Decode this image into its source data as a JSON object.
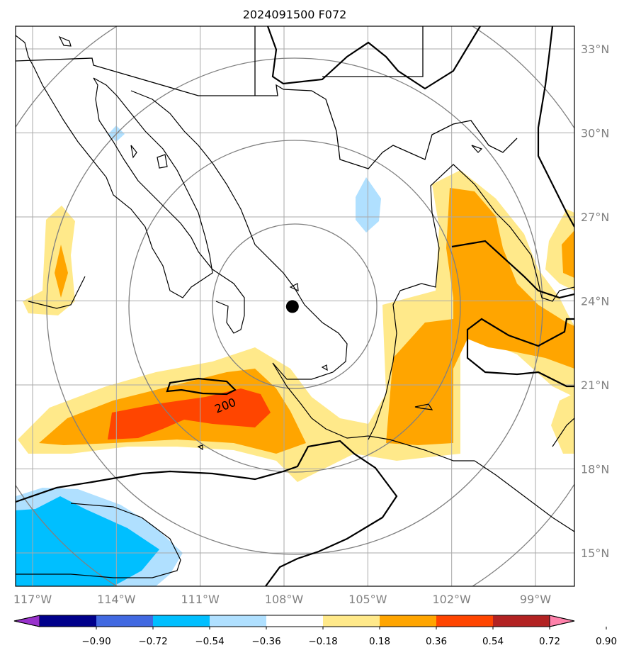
{
  "title": "2024091500 F072",
  "colors": {
    "land_border": "#000000",
    "graticule": "#a9a9a9",
    "range_ring": "#808080",
    "tick_label": "#808080"
  },
  "chart_data": {
    "type": "contourf-map",
    "projection": "lon-lat",
    "lon_range": [
      -118,
      -97.3
    ],
    "lat_range": [
      13.8,
      33.8
    ],
    "lon_ticks": [
      {
        "value": -117,
        "label": "117°W"
      },
      {
        "value": -114,
        "label": "114°W"
      },
      {
        "value": -111,
        "label": "111°W"
      },
      {
        "value": -108,
        "label": "108°W"
      },
      {
        "value": -105,
        "label": "105°W"
      },
      {
        "value": -102,
        "label": "102°W"
      },
      {
        "value": -99,
        "label": "99°W"
      }
    ],
    "lat_ticks": [
      {
        "value": 15,
        "label": "15°N"
      },
      {
        "value": 18,
        "label": "18°N"
      },
      {
        "value": 21,
        "label": "21°N"
      },
      {
        "value": 24,
        "label": "24°N"
      },
      {
        "value": 27,
        "label": "27°N"
      },
      {
        "value": 30,
        "label": "30°N"
      },
      {
        "value": 33,
        "label": "33°N"
      }
    ],
    "grid": true,
    "center_marker": {
      "lon": -107.7,
      "lat": 23.8
    },
    "contour_label": "200",
    "colorbar": {
      "levels": [
        "−0.90",
        "−0.72",
        "−0.54",
        "−0.36",
        "−0.18",
        "0.18",
        "0.36",
        "0.54",
        "0.72",
        "0.90"
      ],
      "colors": [
        "#9932cc",
        "#00008b",
        "#4169e1",
        "#00bfff",
        "#b0e0ff",
        "#ffffff",
        "#ffe98a",
        "#ffa500",
        "#ff4500",
        "#b22222",
        "#ff82ab"
      ]
    }
  }
}
